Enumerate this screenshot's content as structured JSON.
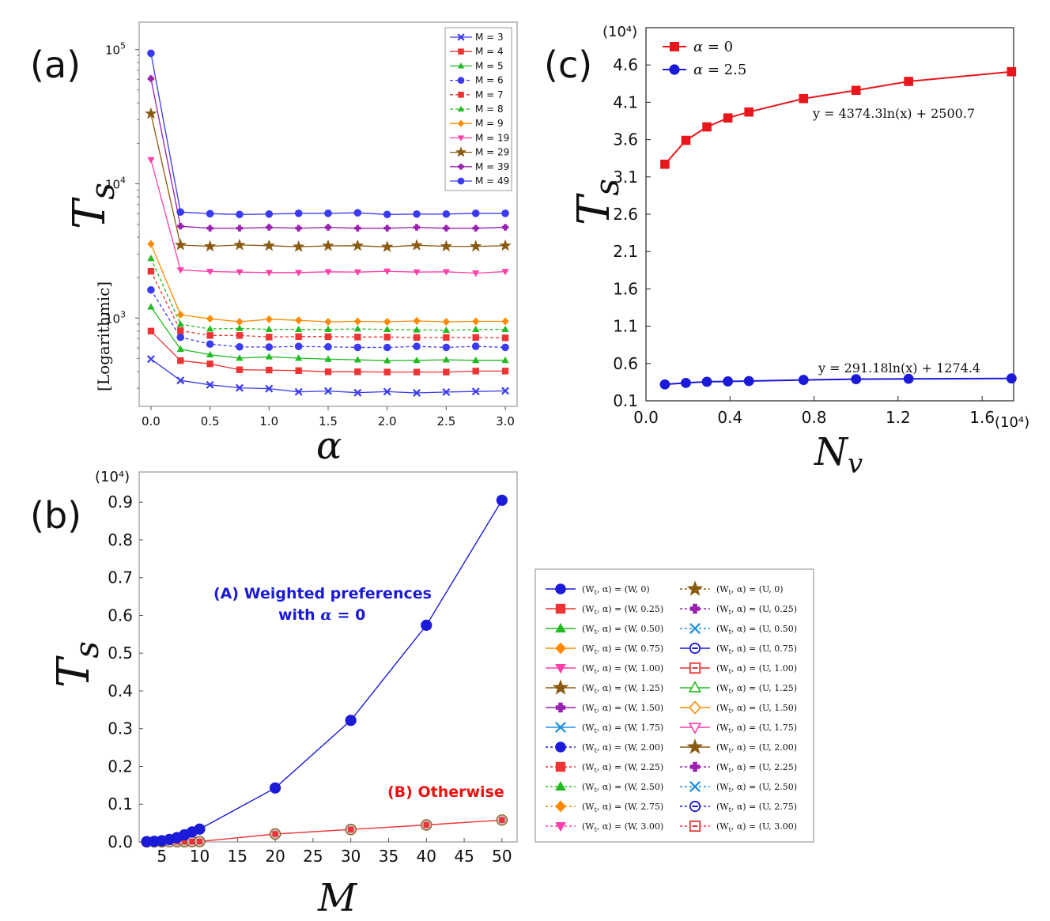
{
  "panels": {
    "a": {
      "label": "(a)"
    },
    "b": {
      "label": "(b)"
    },
    "c": {
      "label": "(c)"
    }
  },
  "chart_data": [
    {
      "id": "a",
      "type": "line",
      "title": "",
      "xlabel": "α",
      "ylabel": "T_s",
      "ylabel_sub": "s",
      "ylabel_main": "T",
      "y_scale_note": "[Logarithmic]",
      "yscale": "log",
      "xlim": [
        -0.1,
        3.1
      ],
      "ylim": [
        220,
        160000
      ],
      "x_ticks": [
        0.0,
        0.5,
        1.0,
        1.5,
        2.0,
        2.5,
        3.0
      ],
      "x_tick_labels": [
        "0.0",
        "0.5",
        "1.0",
        "1.5",
        "2.0",
        "2.5",
        "3.0"
      ],
      "y_ticks": [
        1000,
        10000,
        100000
      ],
      "y_tick_labels": [
        {
          "base": "10",
          "exp": "3"
        },
        {
          "base": "10",
          "exp": "4"
        },
        {
          "base": "10",
          "exp": "5"
        }
      ],
      "legend_position": "top-right",
      "x": [
        0,
        0.25,
        0.5,
        0.75,
        1.0,
        1.25,
        1.5,
        1.75,
        2.0,
        2.25,
        2.5,
        2.75,
        3.0
      ],
      "series": [
        {
          "name": "M = 3",
          "color": "#3a3af0",
          "marker": "x",
          "dash": false,
          "values": [
            495,
            343,
            318,
            302,
            298,
            282,
            286,
            278,
            283,
            277,
            281,
            284,
            287
          ]
        },
        {
          "name": "M = 4",
          "color": "#ee3333",
          "marker": "square",
          "dash": false,
          "values": [
            800,
            482,
            456,
            412,
            410,
            406,
            398,
            398,
            396,
            396,
            396,
            403,
            403
          ]
        },
        {
          "name": "M = 5",
          "color": "#22bb22",
          "marker": "triangle",
          "dash": false,
          "values": [
            1210,
            586,
            533,
            503,
            515,
            503,
            494,
            489,
            482,
            484,
            489,
            484,
            484
          ]
        },
        {
          "name": "M = 6",
          "color": "#3a3af0",
          "marker": "circle",
          "dash": true,
          "values": [
            1620,
            720,
            640,
            610,
            608,
            615,
            610,
            605,
            604,
            615,
            605,
            616,
            605
          ]
        },
        {
          "name": "M = 7",
          "color": "#ee3333",
          "marker": "square",
          "dash": true,
          "values": [
            2230,
            805,
            742,
            742,
            722,
            727,
            727,
            722,
            722,
            717,
            717,
            717,
            712
          ]
        },
        {
          "name": "M = 8",
          "color": "#22bb22",
          "marker": "triangle",
          "dash": true,
          "values": [
            2780,
            900,
            830,
            838,
            823,
            823,
            823,
            830,
            823,
            817,
            811,
            823,
            823
          ]
        },
        {
          "name": "M = 9",
          "color": "#ff8a00",
          "marker": "diamond",
          "dash": false,
          "values": [
            3560,
            1060,
            988,
            938,
            980,
            962,
            938,
            945,
            938,
            952,
            938,
            945,
            945
          ]
        },
        {
          "name": "M = 19",
          "color": "#ff3fa8",
          "marker": "tri-down",
          "dash": false,
          "values": [
            15100,
            2280,
            2220,
            2200,
            2180,
            2180,
            2210,
            2200,
            2230,
            2200,
            2210,
            2160,
            2220
          ]
        },
        {
          "name": "M = 29",
          "color": "#8a5a10",
          "marker": "star",
          "dash": false,
          "values": [
            33300,
            3500,
            3420,
            3500,
            3460,
            3400,
            3450,
            3460,
            3390,
            3480,
            3420,
            3420,
            3460
          ]
        },
        {
          "name": "M = 39",
          "color": "#9a20b0",
          "marker": "plus",
          "dash": false,
          "values": [
            60700,
            4830,
            4670,
            4670,
            4740,
            4670,
            4740,
            4670,
            4670,
            4740,
            4670,
            4670,
            4740
          ]
        },
        {
          "name": "M = 49",
          "color": "#3a3af0",
          "marker": "circle",
          "dash": false,
          "values": [
            93800,
            6160,
            5990,
            5910,
            5950,
            6030,
            6030,
            6080,
            5910,
            5950,
            5950,
            6030,
            6030
          ]
        }
      ]
    },
    {
      "id": "b",
      "type": "line",
      "title": "",
      "xlabel": "M",
      "ylabel_main": "T",
      "ylabel_sub": "s",
      "y_unit": "(10⁴)",
      "xlim": [
        2,
        52
      ],
      "ylim": [
        0,
        0.98
      ],
      "x_ticks": [
        5,
        10,
        15,
        20,
        25,
        30,
        35,
        40,
        45,
        50
      ],
      "y_ticks": [
        0.0,
        0.1,
        0.2,
        0.3,
        0.4,
        0.5,
        0.6,
        0.7,
        0.8,
        0.9
      ],
      "y_tick_labels": [
        "0.0",
        "0.1",
        "0.2",
        "0.3",
        "0.4",
        "0.5",
        "0.6",
        "0.7",
        "0.8",
        "0.9"
      ],
      "annotations": [
        {
          "text": "(A) Weighted preferences",
          "color": "#1a1ad8"
        },
        {
          "text_pre": "with ",
          "text_var": "α",
          "text_post": " = 0",
          "color": "#1a1ad8"
        },
        {
          "text": "(B) Otherwise",
          "color": "#ee1111"
        }
      ],
      "series": [
        {
          "name": "(A) Weighted, α = 0",
          "color": "#1a1ad8",
          "marker": "circle",
          "x": [
            3,
            4,
            5,
            6,
            7,
            8,
            9,
            10,
            20,
            30,
            40,
            50
          ],
          "values": [
            0.0009,
            0.0015,
            0.0032,
            0.0065,
            0.0115,
            0.019,
            0.0265,
            0.034,
            0.143,
            0.322,
            0.574,
            0.905
          ]
        },
        {
          "name": "(B) Otherwise",
          "color": "#ee3333",
          "marker": "circle-square",
          "x": [
            3,
            4,
            5,
            6,
            7,
            8,
            9,
            10,
            20,
            30,
            40,
            50
          ],
          "values": [
            0.0003,
            0.0004,
            0.0005,
            0.0006,
            0.0007,
            0.0008,
            0.0009,
            0.001,
            0.021,
            0.033,
            0.045,
            0.058
          ]
        }
      ],
      "legend": {
        "position": "right",
        "col1": [
          {
            "label": "(W, 0)",
            "color": "#1a1ad8",
            "marker": "circle",
            "dash": false
          },
          {
            "label": "(W, 0.25)",
            "color": "#ee3333",
            "marker": "square",
            "dash": false
          },
          {
            "label": "(W, 0.50)",
            "color": "#22bb22",
            "marker": "triangle",
            "dash": false
          },
          {
            "label": "(W, 0.75)",
            "color": "#ff8a00",
            "marker": "diamond",
            "dash": false
          },
          {
            "label": "(W, 1.00)",
            "color": "#ff3fa8",
            "marker": "tri-down",
            "dash": false
          },
          {
            "label": "(W, 1.25)",
            "color": "#8a5a10",
            "marker": "star",
            "dash": false
          },
          {
            "label": "(W, 1.50)",
            "color": "#9a20b0",
            "marker": "plus",
            "dash": false
          },
          {
            "label": "(W, 1.75)",
            "color": "#1f8fe0",
            "marker": "x",
            "dash": false
          },
          {
            "label": "(W, 2.00)",
            "color": "#1a1ad8",
            "marker": "circle",
            "dash": true
          },
          {
            "label": "(W, 2.25)",
            "color": "#ee3333",
            "marker": "square",
            "dash": true
          },
          {
            "label": "(W, 2.50)",
            "color": "#22bb22",
            "marker": "triangle",
            "dash": true
          },
          {
            "label": "(W, 2.75)",
            "color": "#ff8a00",
            "marker": "diamond",
            "dash": true
          },
          {
            "label": "(W, 3.00)",
            "color": "#ff3fa8",
            "marker": "tri-down",
            "dash": true
          }
        ],
        "col2": [
          {
            "label": "(U, 0)",
            "color": "#8a5a10",
            "marker": "star",
            "dash": true
          },
          {
            "label": "(U, 0.25)",
            "color": "#9a20b0",
            "marker": "plus",
            "dash": true
          },
          {
            "label": "(U, 0.50)",
            "color": "#1f8fe0",
            "marker": "x",
            "dash": true
          },
          {
            "label": "(U, 0.75)",
            "color": "#1a1ad8",
            "marker": "circle-minus",
            "dash": false
          },
          {
            "label": "(U, 1.00)",
            "color": "#ee3333",
            "marker": "square-minus",
            "dash": false
          },
          {
            "label": "(U, 1.25)",
            "color": "#22bb22",
            "marker": "triangle-open",
            "dash": false
          },
          {
            "label": "(U, 1.50)",
            "color": "#ff8a00",
            "marker": "diamond-open",
            "dash": false
          },
          {
            "label": "(U, 1.75)",
            "color": "#ff3fa8",
            "marker": "tri-down-open",
            "dash": false
          },
          {
            "label": "(U, 2.00)",
            "color": "#8a5a10",
            "marker": "star",
            "dash": false
          },
          {
            "label": "(U, 2.25)",
            "color": "#9a20b0",
            "marker": "plus",
            "dash": true
          },
          {
            "label": "(U, 2.50)",
            "color": "#1f8fe0",
            "marker": "x",
            "dash": true
          },
          {
            "label": "(U, 2.75)",
            "color": "#1a1ad8",
            "marker": "circle-minus",
            "dash": true
          },
          {
            "label": "(U, 3.00)",
            "color": "#ee3333",
            "marker": "square-minus",
            "dash": true
          }
        ],
        "prefix_parts": [
          "(W",
          "t",
          ", α) = "
        ]
      }
    },
    {
      "id": "c",
      "type": "line",
      "title": "",
      "xlabel_main": "N",
      "xlabel_sub": "v",
      "ylabel_main": "T",
      "ylabel_sub": "s",
      "x_unit": "(10⁴)",
      "y_unit": "(10⁴)",
      "xlim": [
        0,
        1.75
      ],
      "ylim": [
        0.1,
        5.1
      ],
      "x_ticks": [
        0,
        0.4,
        0.8,
        1.2,
        1.6
      ],
      "x_tick_labels": [
        "0.0",
        "0.4",
        "0.8",
        "1.2",
        "1.6"
      ],
      "y_ticks": [
        0.1,
        0.6,
        1.1,
        1.6,
        2.1,
        2.6,
        3.1,
        3.6,
        4.1,
        4.6
      ],
      "y_tick_labels": [
        "0.1",
        "0.6",
        "1.1",
        "1.6",
        "2.1",
        "2.6",
        "3.1",
        "3.6",
        "4.1",
        "4.6"
      ],
      "legend_position": "top-left",
      "series": [
        {
          "name": "α = 0",
          "name_var": "α",
          "name_rest": " = 0",
          "color": "#e8161b",
          "marker": "square",
          "x": [
            0.09,
            0.19,
            0.29,
            0.39,
            0.49,
            0.75,
            1.0,
            1.25,
            1.74
          ],
          "values": [
            3.27,
            3.59,
            3.77,
            3.89,
            3.97,
            4.15,
            4.26,
            4.38,
            4.51
          ]
        },
        {
          "name": "α = 2.5",
          "name_var": "α",
          "name_rest": " = 2.5",
          "color": "#1a1ad8",
          "marker": "circle",
          "x": [
            0.09,
            0.19,
            0.29,
            0.39,
            0.49,
            0.75,
            1.0,
            1.25,
            1.74
          ],
          "values": [
            0.32,
            0.34,
            0.355,
            0.36,
            0.365,
            0.38,
            0.39,
            0.395,
            0.4
          ]
        }
      ],
      "annotations": [
        {
          "text": "y = 4374.3ln(x) + 2500.7"
        },
        {
          "text": "y = 291.18ln(x) + 1274.4"
        }
      ]
    }
  ]
}
